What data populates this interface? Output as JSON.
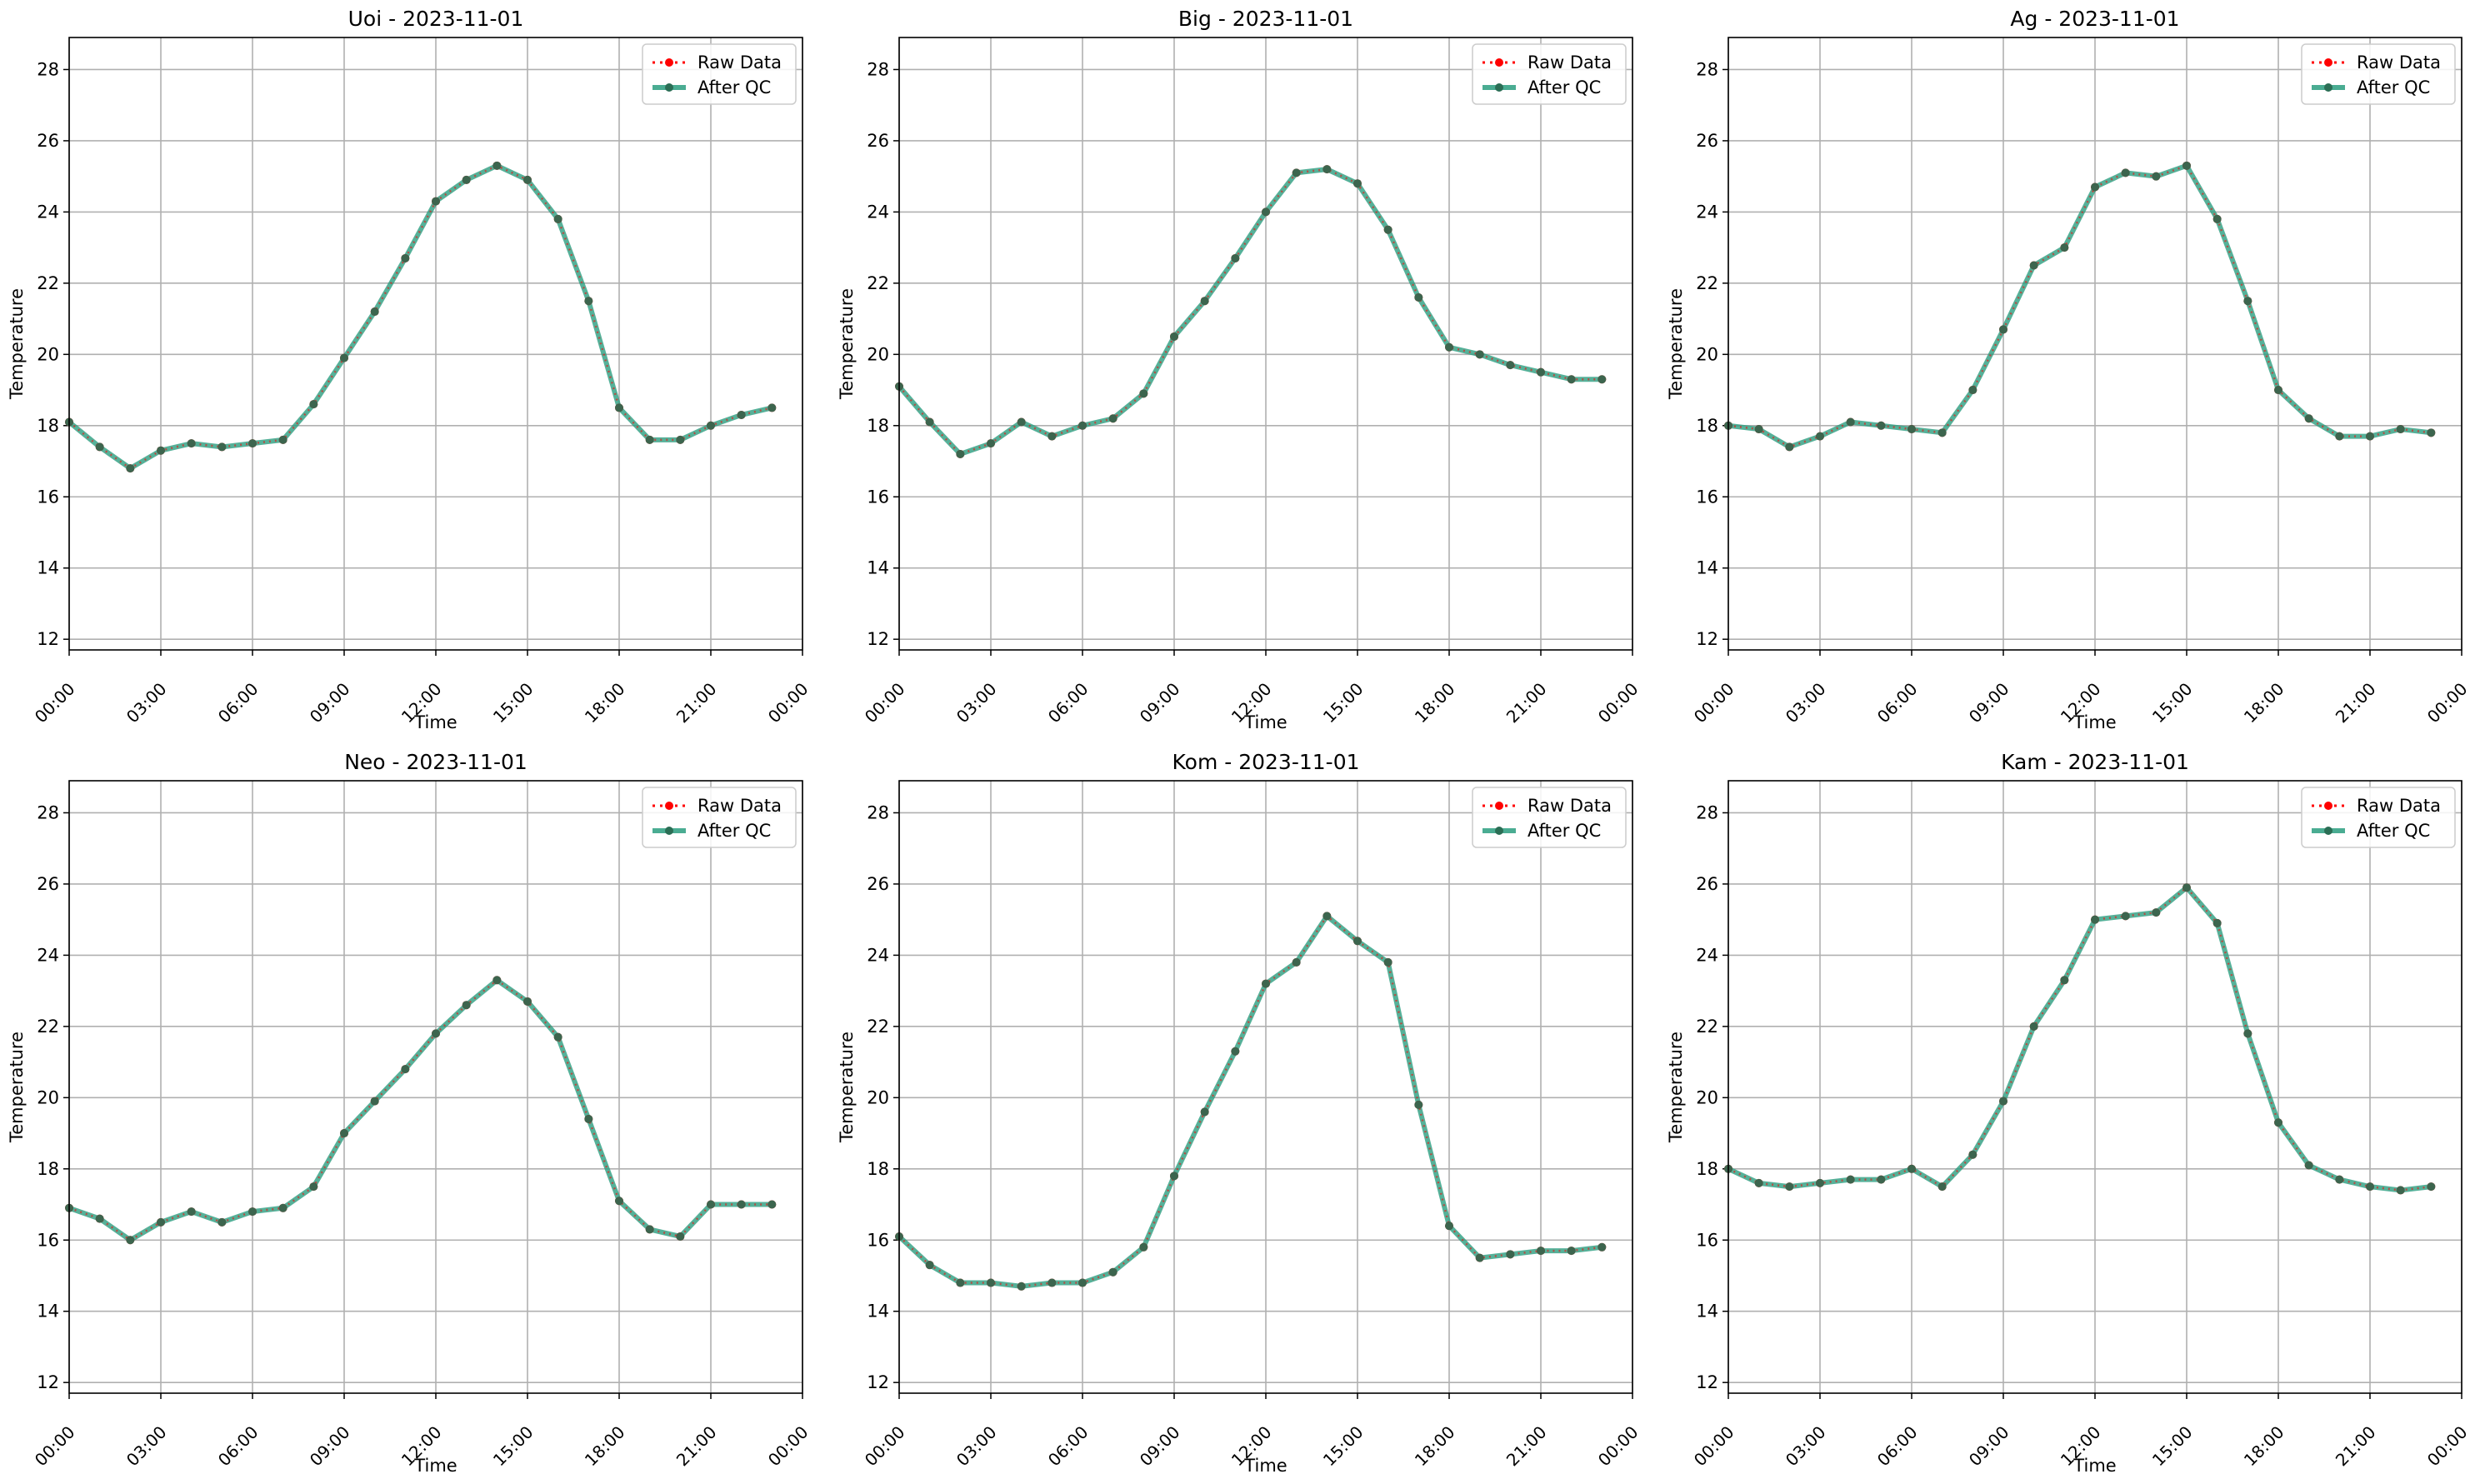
{
  "figure": {
    "legend_raw": "Raw Data",
    "legend_qc": "After QC",
    "colors": {
      "raw": "#ff0000",
      "qc": "#2a9d7f",
      "marker": "#2b6e55",
      "grid": "#b0b0b0"
    }
  },
  "chart_data": [
    {
      "type": "line",
      "title": "Uoi - 2023-11-01",
      "xlabel": "Time",
      "ylabel": "Temperature",
      "xlim": [
        0,
        24
      ],
      "ylim": [
        11.7,
        28.9
      ],
      "xticks": [
        "00:00",
        "03:00",
        "06:00",
        "09:00",
        "12:00",
        "15:00",
        "18:00",
        "21:00",
        "00:00"
      ],
      "yticks": [
        12,
        14,
        16,
        18,
        20,
        22,
        24,
        26,
        28
      ],
      "grid": true,
      "legend": "top-right",
      "x": [
        0,
        1,
        2,
        3,
        4,
        5,
        6,
        7,
        8,
        9,
        10,
        11,
        12,
        13,
        14,
        15,
        16,
        17,
        18,
        19,
        20,
        21,
        22,
        23
      ],
      "series": [
        {
          "name": "Raw Data",
          "values": [
            18.1,
            17.4,
            16.8,
            17.3,
            17.5,
            17.4,
            17.5,
            17.6,
            18.6,
            19.9,
            21.2,
            22.7,
            24.3,
            24.9,
            25.3,
            24.9,
            23.8,
            21.5,
            18.5,
            17.6,
            17.6,
            18.0,
            18.3,
            18.5
          ]
        },
        {
          "name": "After QC",
          "values": [
            18.1,
            17.4,
            16.8,
            17.3,
            17.5,
            17.4,
            17.5,
            17.6,
            18.6,
            19.9,
            21.2,
            22.7,
            24.3,
            24.9,
            25.3,
            24.9,
            23.8,
            21.5,
            18.5,
            17.6,
            17.6,
            18.0,
            18.3,
            18.5
          ]
        }
      ]
    },
    {
      "type": "line",
      "title": "Big - 2023-11-01",
      "xlabel": "Time",
      "ylabel": "Temperature",
      "xlim": [
        0,
        24
      ],
      "ylim": [
        11.7,
        28.9
      ],
      "xticks": [
        "00:00",
        "03:00",
        "06:00",
        "09:00",
        "12:00",
        "15:00",
        "18:00",
        "21:00",
        "00:00"
      ],
      "yticks": [
        12,
        14,
        16,
        18,
        20,
        22,
        24,
        26,
        28
      ],
      "grid": true,
      "legend": "top-right",
      "x": [
        0,
        1,
        2,
        3,
        4,
        5,
        6,
        7,
        8,
        9,
        10,
        11,
        12,
        13,
        14,
        15,
        16,
        17,
        18,
        19,
        20,
        21,
        22,
        23
      ],
      "series": [
        {
          "name": "Raw Data",
          "values": [
            19.1,
            18.1,
            17.2,
            17.5,
            18.1,
            17.7,
            18.0,
            18.2,
            18.9,
            20.5,
            21.5,
            22.7,
            24.0,
            25.1,
            25.2,
            24.8,
            23.5,
            21.6,
            20.2,
            20.0,
            19.7,
            19.5,
            19.3,
            19.3
          ]
        },
        {
          "name": "After QC",
          "values": [
            19.1,
            18.1,
            17.2,
            17.5,
            18.1,
            17.7,
            18.0,
            18.2,
            18.9,
            20.5,
            21.5,
            22.7,
            24.0,
            25.1,
            25.2,
            24.8,
            23.5,
            21.6,
            20.2,
            20.0,
            19.7,
            19.5,
            19.3,
            19.3
          ]
        }
      ]
    },
    {
      "type": "line",
      "title": "Ag - 2023-11-01",
      "xlabel": "Time",
      "ylabel": "Temperature",
      "xlim": [
        0,
        24
      ],
      "ylim": [
        11.7,
        28.9
      ],
      "xticks": [
        "00:00",
        "03:00",
        "06:00",
        "09:00",
        "12:00",
        "15:00",
        "18:00",
        "21:00",
        "00:00"
      ],
      "yticks": [
        12,
        14,
        16,
        18,
        20,
        22,
        24,
        26,
        28
      ],
      "grid": true,
      "legend": "top-right",
      "x": [
        0,
        1,
        2,
        3,
        4,
        5,
        6,
        7,
        8,
        9,
        10,
        11,
        12,
        13,
        14,
        15,
        16,
        17,
        18,
        19,
        20,
        21,
        22,
        23
      ],
      "series": [
        {
          "name": "Raw Data",
          "values": [
            18.0,
            17.9,
            17.4,
            17.7,
            18.1,
            18.0,
            17.9,
            17.8,
            19.0,
            20.7,
            22.5,
            23.0,
            24.7,
            25.1,
            25.0,
            25.3,
            23.8,
            21.5,
            19.0,
            18.2,
            17.7,
            17.7,
            17.9,
            17.8
          ]
        },
        {
          "name": "After QC",
          "values": [
            18.0,
            17.9,
            17.4,
            17.7,
            18.1,
            18.0,
            17.9,
            17.8,
            19.0,
            20.7,
            22.5,
            23.0,
            24.7,
            25.1,
            25.0,
            25.3,
            23.8,
            21.5,
            19.0,
            18.2,
            17.7,
            17.7,
            17.9,
            17.8
          ]
        }
      ]
    },
    {
      "type": "line",
      "title": "Neo - 2023-11-01",
      "xlabel": "Time",
      "ylabel": "Temperature",
      "xlim": [
        0,
        24
      ],
      "ylim": [
        11.7,
        28.9
      ],
      "xticks": [
        "00:00",
        "03:00",
        "06:00",
        "09:00",
        "12:00",
        "15:00",
        "18:00",
        "21:00",
        "00:00"
      ],
      "yticks": [
        12,
        14,
        16,
        18,
        20,
        22,
        24,
        26,
        28
      ],
      "grid": true,
      "legend": "top-right",
      "x": [
        0,
        1,
        2,
        3,
        4,
        5,
        6,
        7,
        8,
        9,
        10,
        11,
        12,
        13,
        14,
        15,
        16,
        17,
        18,
        19,
        20,
        21,
        22,
        23
      ],
      "series": [
        {
          "name": "Raw Data",
          "values": [
            16.9,
            16.6,
            16.0,
            16.5,
            16.8,
            16.5,
            16.8,
            16.9,
            17.5,
            19.0,
            19.9,
            20.8,
            21.8,
            22.6,
            23.3,
            22.7,
            21.7,
            19.4,
            17.1,
            16.3,
            16.1,
            17.0,
            17.0,
            17.0
          ]
        },
        {
          "name": "After QC",
          "values": [
            16.9,
            16.6,
            16.0,
            16.5,
            16.8,
            16.5,
            16.8,
            16.9,
            17.5,
            19.0,
            19.9,
            20.8,
            21.8,
            22.6,
            23.3,
            22.7,
            21.7,
            19.4,
            17.1,
            16.3,
            16.1,
            17.0,
            17.0,
            17.0
          ]
        }
      ]
    },
    {
      "type": "line",
      "title": "Kom - 2023-11-01",
      "xlabel": "Time",
      "ylabel": "Temperature",
      "xlim": [
        0,
        24
      ],
      "ylim": [
        11.7,
        28.9
      ],
      "xticks": [
        "00:00",
        "03:00",
        "06:00",
        "09:00",
        "12:00",
        "15:00",
        "18:00",
        "21:00",
        "00:00"
      ],
      "yticks": [
        12,
        14,
        16,
        18,
        20,
        22,
        24,
        26,
        28
      ],
      "grid": true,
      "legend": "top-right",
      "x": [
        0,
        1,
        2,
        3,
        4,
        5,
        6,
        7,
        8,
        9,
        10,
        11,
        12,
        13,
        14,
        15,
        16,
        17,
        18,
        19,
        20,
        21,
        22,
        23
      ],
      "series": [
        {
          "name": "Raw Data",
          "values": [
            16.1,
            15.3,
            14.8,
            14.8,
            14.7,
            14.8,
            14.8,
            15.1,
            15.8,
            17.8,
            19.6,
            21.3,
            23.2,
            23.8,
            25.1,
            24.4,
            23.8,
            19.8,
            16.4,
            15.5,
            15.6,
            15.7,
            15.7,
            15.8
          ]
        },
        {
          "name": "After QC",
          "values": [
            16.1,
            15.3,
            14.8,
            14.8,
            14.7,
            14.8,
            14.8,
            15.1,
            15.8,
            17.8,
            19.6,
            21.3,
            23.2,
            23.8,
            25.1,
            24.4,
            23.8,
            19.8,
            16.4,
            15.5,
            15.6,
            15.7,
            15.7,
            15.8
          ]
        }
      ]
    },
    {
      "type": "line",
      "title": "Kam - 2023-11-01",
      "xlabel": "Time",
      "ylabel": "Temperature",
      "xlim": [
        0,
        24
      ],
      "ylim": [
        11.7,
        28.9
      ],
      "xticks": [
        "00:00",
        "03:00",
        "06:00",
        "09:00",
        "12:00",
        "15:00",
        "18:00",
        "21:00",
        "00:00"
      ],
      "yticks": [
        12,
        14,
        16,
        18,
        20,
        22,
        24,
        26,
        28
      ],
      "grid": true,
      "legend": "top-right",
      "x": [
        0,
        1,
        2,
        3,
        4,
        5,
        6,
        7,
        8,
        9,
        10,
        11,
        12,
        13,
        14,
        15,
        16,
        17,
        18,
        19,
        20,
        21,
        22,
        23
      ],
      "series": [
        {
          "name": "Raw Data",
          "values": [
            18.0,
            17.6,
            17.5,
            17.6,
            17.7,
            17.7,
            18.0,
            17.5,
            18.4,
            19.9,
            22.0,
            23.3,
            25.0,
            25.1,
            25.2,
            25.9,
            24.9,
            21.8,
            19.3,
            18.1,
            17.7,
            17.5,
            17.4,
            17.5
          ]
        },
        {
          "name": "After QC",
          "values": [
            18.0,
            17.6,
            17.5,
            17.6,
            17.7,
            17.7,
            18.0,
            17.5,
            18.4,
            19.9,
            22.0,
            23.3,
            25.0,
            25.1,
            25.2,
            25.9,
            24.9,
            21.8,
            19.3,
            18.1,
            17.7,
            17.5,
            17.4,
            17.5
          ]
        }
      ]
    }
  ]
}
